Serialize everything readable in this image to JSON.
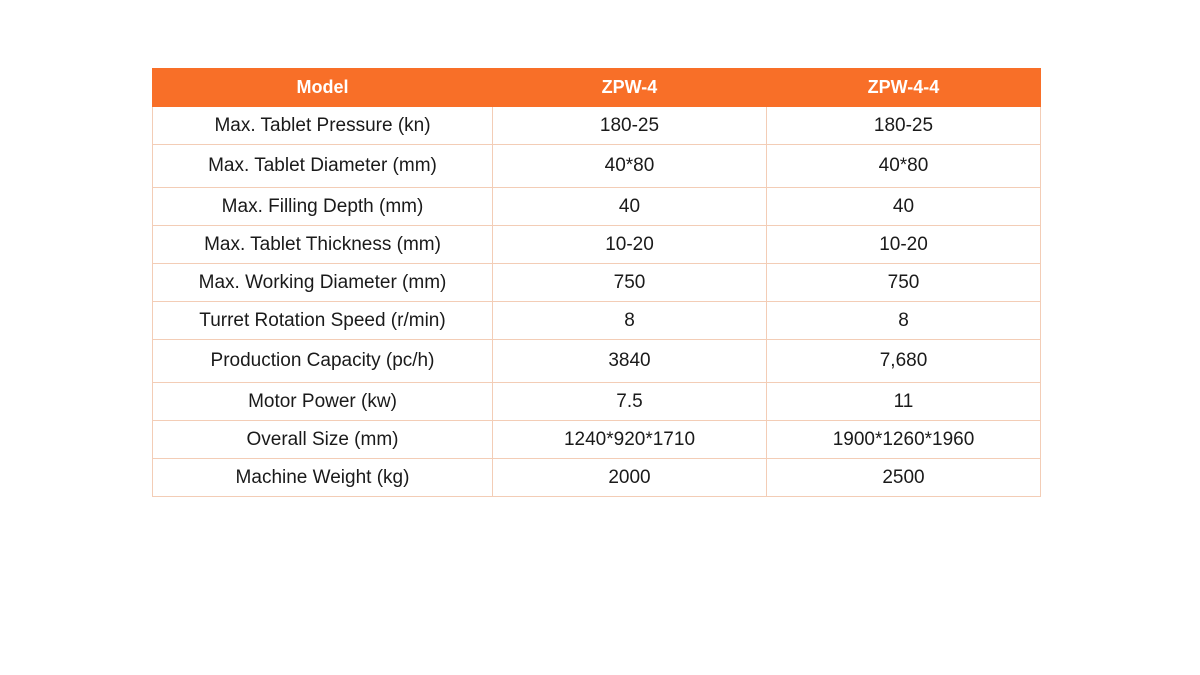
{
  "table": {
    "headers": [
      "Model",
      "ZPW-4",
      "ZPW-4-4"
    ],
    "rows": [
      [
        "Max. Tablet Pressure (kn)",
        "180-25",
        "180-25"
      ],
      [
        "Max. Tablet Diameter (mm)",
        "40*80",
        "40*80"
      ],
      [
        "Max. Filling Depth (mm)",
        "40",
        "40"
      ],
      [
        "Max. Tablet Thickness (mm)",
        "10-20",
        "10-20"
      ],
      [
        "Max. Working Diameter (mm)",
        "750",
        "750"
      ],
      [
        "Turret Rotation Speed (r/min)",
        "8",
        "8"
      ],
      [
        "Production Capacity (pc/h)",
        "3840",
        "7,680"
      ],
      [
        "Motor Power (kw)",
        "7.5",
        "11"
      ],
      [
        "Overall Size (mm)",
        "1240*920*1710",
        "1900*1260*1960"
      ],
      [
        "Machine Weight (kg)",
        "2000",
        "2500"
      ]
    ]
  },
  "colors": {
    "header_bg": "#f86f28",
    "header_text": "#ffffff",
    "border": "#f3cdb6"
  }
}
